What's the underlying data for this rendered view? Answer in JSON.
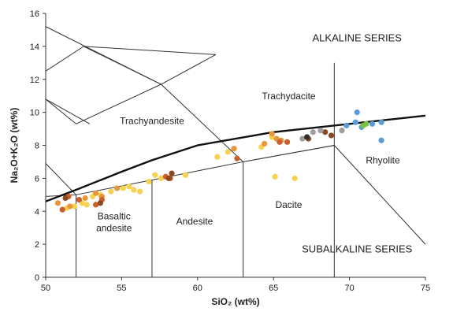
{
  "chart_data": {
    "type": "scatter",
    "title": "",
    "xlabel": "SiO₂ (wt%)",
    "ylabel": "Na₂O+K₂O (wt%)",
    "xlim": [
      50,
      75
    ],
    "ylim": [
      0,
      16
    ],
    "xticks": [
      50,
      55,
      60,
      65,
      70,
      75
    ],
    "yticks": [
      0,
      2,
      4,
      6,
      8,
      10,
      12,
      14,
      16
    ],
    "grid": false,
    "legend": "none",
    "field_boundaries": [
      {
        "id": "basalt-andesite-1",
        "x": [
          52,
          52
        ],
        "y": [
          0,
          5
        ]
      },
      {
        "id": "basalt-andesite-2",
        "x": [
          57,
          57
        ],
        "y": [
          0,
          5.9
        ]
      },
      {
        "id": "andesite-dacite",
        "x": [
          63,
          63
        ],
        "y": [
          0,
          7
        ]
      },
      {
        "id": "dacite-rhyolite",
        "x": [
          69,
          69
        ],
        "y": [
          0,
          8
        ]
      },
      {
        "id": "tas-lower-trend",
        "x": [
          50,
          52,
          57,
          63,
          69
        ],
        "y": [
          4.9,
          5.0,
          5.9,
          7.0,
          8.0
        ]
      },
      {
        "id": "trachyandesite-upper",
        "x": [
          52,
          57.6,
          63,
          69
        ],
        "y": [
          9.3,
          11.7,
          7.0,
          8.0
        ]
      },
      {
        "id": "trachyandesite-left",
        "x": [
          52,
          50
        ],
        "y": [
          9.3,
          10.8
        ]
      },
      {
        "id": "basalt-trachybasalt",
        "x": [
          50,
          52,
          52
        ],
        "y": [
          6.9,
          5.0,
          5.0
        ]
      },
      {
        "id": "phonotephrite-a",
        "x": [
          50,
          52.5
        ],
        "y": [
          12.5,
          14
        ]
      },
      {
        "id": "phonotephrite-b",
        "x": [
          52.5,
          57.6
        ],
        "y": [
          14,
          11.7
        ]
      },
      {
        "id": "phonotephrite-c",
        "x": [
          52.5,
          61.2
        ],
        "y": [
          14,
          13.5
        ]
      },
      {
        "id": "upper-left-diag",
        "x": [
          50,
          57.6
        ],
        "y": [
          15.2,
          11.7
        ]
      },
      {
        "id": "outer-basalt-field",
        "x": [
          50,
          52.9
        ],
        "y": [
          10.8,
          9.3
        ]
      },
      {
        "id": "trachyte-upper",
        "x": [
          57.6,
          61.2
        ],
        "y": [
          11.7,
          13.5
        ]
      },
      {
        "id": "rhyolite-diag",
        "x": [
          69,
          75
        ],
        "y": [
          8,
          2
        ]
      },
      {
        "id": "rhyolite-vert",
        "x": [
          69,
          69
        ],
        "y": [
          8,
          13
        ]
      }
    ],
    "alkaline_divide": {
      "x": [
        50,
        52,
        55,
        57,
        60,
        65,
        70,
        75
      ],
      "y": [
        4.6,
        5.3,
        6.4,
        7.1,
        8.0,
        8.8,
        9.3,
        9.8
      ]
    },
    "field_labels": [
      {
        "text": "Trachydacite",
        "x": 66.0,
        "y": 10.8
      },
      {
        "text": "Trachyandesite",
        "x": 57.0,
        "y": 9.3
      },
      {
        "text": "Basaltic",
        "x": 54.5,
        "y": 3.5
      },
      {
        "text": "andesite",
        "x": 54.5,
        "y": 2.8
      },
      {
        "text": "Andesite",
        "x": 59.8,
        "y": 3.2
      },
      {
        "text": "Dacite",
        "x": 66.0,
        "y": 4.2
      },
      {
        "text": "Rhyolite",
        "x": 72.2,
        "y": 6.9
      },
      {
        "text": "ALKALINE SERIES",
        "x": 70.5,
        "y": 14.3
      },
      {
        "text": "SUBALKALINE SERIES",
        "x": 70.5,
        "y": 1.5
      }
    ],
    "series": [
      {
        "color": "#F5D24F",
        "points": [
          [
            51.4,
            4.2
          ],
          [
            51.9,
            4.3
          ],
          [
            52.4,
            4.5
          ],
          [
            52.7,
            4.4
          ],
          [
            53.1,
            4.9
          ],
          [
            53.6,
            5.0
          ],
          [
            54.3,
            5.2
          ],
          [
            55.1,
            5.4
          ],
          [
            55.5,
            5.5
          ],
          [
            55.8,
            5.3
          ],
          [
            56.2,
            5.2
          ],
          [
            56.8,
            5.8
          ],
          [
            57.2,
            6.2
          ],
          [
            57.6,
            6.0
          ],
          [
            59.2,
            6.2
          ],
          [
            61.3,
            7.3
          ],
          [
            62.0,
            7.6
          ],
          [
            64.2,
            7.9
          ],
          [
            64.9,
            8.5
          ],
          [
            65.1,
            6.1
          ],
          [
            66.4,
            6.0
          ]
        ]
      },
      {
        "color": "#E8963B",
        "points": [
          [
            50.8,
            4.5
          ],
          [
            51.6,
            4.3
          ],
          [
            52.6,
            4.8
          ],
          [
            53.3,
            5.1
          ],
          [
            53.7,
            4.9
          ],
          [
            54.7,
            5.4
          ],
          [
            62.4,
            7.8
          ],
          [
            64.4,
            8.1
          ],
          [
            64.9,
            8.7
          ],
          [
            65.2,
            8.4
          ],
          [
            65.5,
            8.3
          ]
        ]
      },
      {
        "color": "#C95F2A",
        "points": [
          [
            51.1,
            4.1
          ],
          [
            51.5,
            4.9
          ],
          [
            52.2,
            4.7
          ],
          [
            53.3,
            4.4
          ],
          [
            53.7,
            4.7
          ],
          [
            57.9,
            6.1
          ],
          [
            58.2,
            6.0
          ],
          [
            62.6,
            7.2
          ],
          [
            65.4,
            8.2
          ],
          [
            65.9,
            8.2
          ]
        ]
      },
      {
        "color": "#8B4A1E",
        "points": [
          [
            51.3,
            4.8
          ],
          [
            53.6,
            4.5
          ],
          [
            58.1,
            6.0
          ],
          [
            58.3,
            6.3
          ],
          [
            67.3,
            8.4
          ],
          [
            68.4,
            8.8
          ],
          [
            68.8,
            8.6
          ]
        ]
      },
      {
        "color": "#9E9E9E",
        "points": [
          [
            66.9,
            8.4
          ],
          [
            67.6,
            8.8
          ],
          [
            68.1,
            8.9
          ],
          [
            69.5,
            8.9
          ]
        ]
      },
      {
        "color": "#2F2F2F",
        "points": [
          [
            67.2,
            8.5
          ]
        ]
      },
      {
        "color": "#5B9BD5",
        "points": [
          [
            69.8,
            9.2
          ],
          [
            70.4,
            9.4
          ],
          [
            70.5,
            10.0
          ],
          [
            70.8,
            9.1
          ],
          [
            71.5,
            9.3
          ],
          [
            72.1,
            9.4
          ],
          [
            72.1,
            8.3
          ]
        ]
      },
      {
        "color": "#7AC043",
        "points": [
          [
            70.9,
            9.2
          ],
          [
            71.1,
            9.3
          ]
        ]
      }
    ]
  }
}
